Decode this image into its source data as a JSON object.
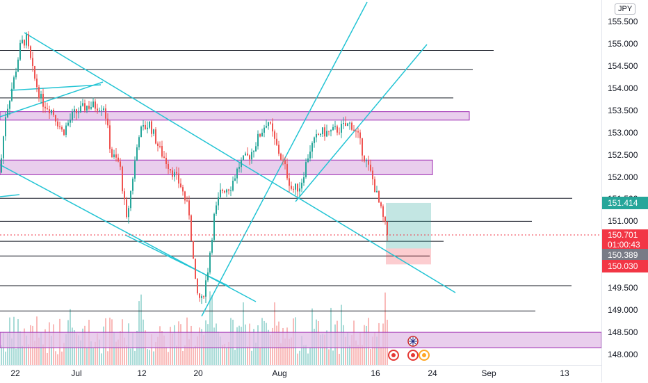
{
  "currency": "JPY",
  "price_axis": {
    "ticks": [
      "155.500",
      "155.000",
      "154.500",
      "154.000",
      "153.500",
      "153.000",
      "152.500",
      "152.000",
      "151.500",
      "151.000",
      "149.500",
      "149.000",
      "148.500",
      "148.000"
    ],
    "labels": {
      "level": "151.414",
      "last_price": "150.701",
      "countdown": "01:00:43",
      "bid": "150.389",
      "stop": "150.030"
    },
    "colors": {
      "level": "#26a69a",
      "last": "#f23645",
      "bid": "#787b86",
      "stop": "#f23645"
    }
  },
  "time_axis": {
    "ticks": [
      "22",
      "Jul",
      "12",
      "20",
      "Aug",
      "16",
      "24",
      "Sep",
      "13"
    ]
  },
  "chart_data": {
    "type": "candlestick",
    "symbol_currency": "JPY",
    "ylim": [
      147.8,
      155.7
    ],
    "last_price": 150.701,
    "horizontal_levels": [
      154.85,
      154.42,
      153.78,
      151.52,
      151.0,
      150.55,
      150.22,
      149.55,
      148.98
    ],
    "zones": [
      {
        "from": 153.28,
        "to": 153.47,
        "color": "#e1bee7"
      },
      {
        "from": 152.05,
        "to": 152.38,
        "color": "#e1bee7"
      },
      {
        "from": 148.15,
        "to": 148.5,
        "color": "#e1bee7"
      }
    ],
    "position": {
      "entry": 150.389,
      "target": 151.414,
      "stop": 150.03
    },
    "accent_colors": {
      "up": "#26a69a",
      "down": "#ef5350",
      "trendline": "#22c4d4"
    }
  }
}
